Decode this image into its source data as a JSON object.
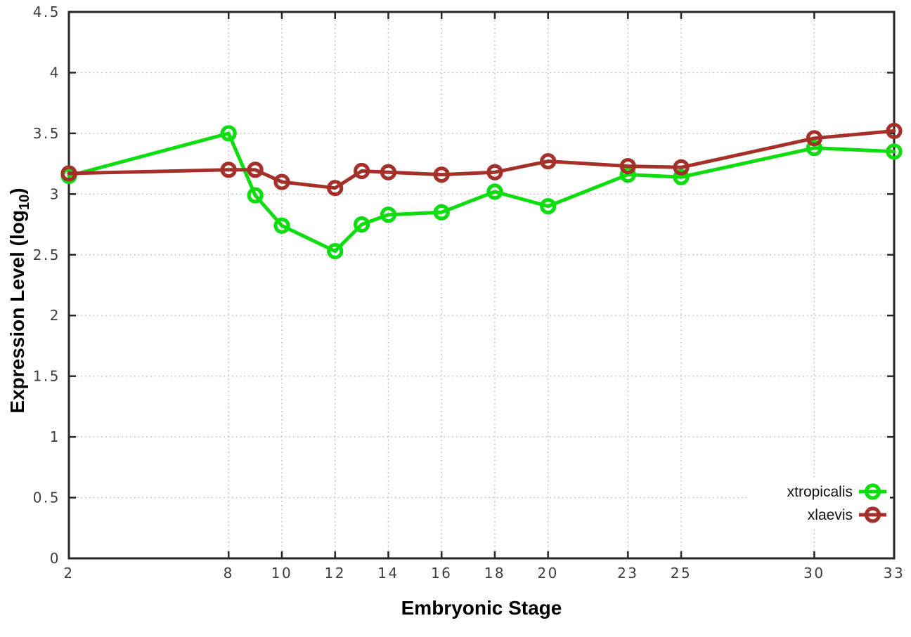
{
  "chart_data": {
    "type": "line",
    "title": "",
    "xlabel": "Embryonic Stage",
    "ylabel": "Expression Level (log10)",
    "ylabel_parts": {
      "main": "Expression Level (log",
      "sub": "10",
      "close": ")"
    },
    "x": [
      2,
      8,
      9,
      10,
      12,
      13,
      14,
      16,
      18,
      20,
      23,
      25,
      30,
      33
    ],
    "x_ticks": [
      "2",
      "8",
      "10",
      "12",
      "14",
      "16",
      "18",
      "20",
      "23",
      "25",
      "30",
      "33"
    ],
    "x_tick_values": [
      2,
      8,
      10,
      12,
      14,
      16,
      18,
      20,
      23,
      25,
      30,
      33
    ],
    "y_ticks": [
      "0",
      "0.5",
      "1",
      "1.5",
      "2",
      "2.5",
      "3",
      "3.5",
      "4",
      "4.5"
    ],
    "y_tick_values": [
      0,
      0.5,
      1,
      1.5,
      2,
      2.5,
      3,
      3.5,
      4,
      4.5
    ],
    "xlim": [
      2,
      33
    ],
    "ylim": [
      0,
      4.5
    ],
    "grid": true,
    "legend_position": "inside-bottom-right",
    "marker": "open-circle",
    "series": [
      {
        "name": "xtropicalis",
        "color": "#0cdd0c",
        "values": [
          3.15,
          3.5,
          2.99,
          2.74,
          2.53,
          2.75,
          2.83,
          2.85,
          3.02,
          2.9,
          3.16,
          3.14,
          3.38,
          3.35
        ]
      },
      {
        "name": "xlaevis",
        "color": "#a5302a",
        "values": [
          3.17,
          3.2,
          3.2,
          3.1,
          3.05,
          3.19,
          3.18,
          3.16,
          3.18,
          3.27,
          3.23,
          3.22,
          3.46,
          3.52
        ]
      }
    ],
    "colors": {
      "grid": "#b8b8b8",
      "border": "#262626",
      "tick_text": "#3d3d3d"
    }
  }
}
